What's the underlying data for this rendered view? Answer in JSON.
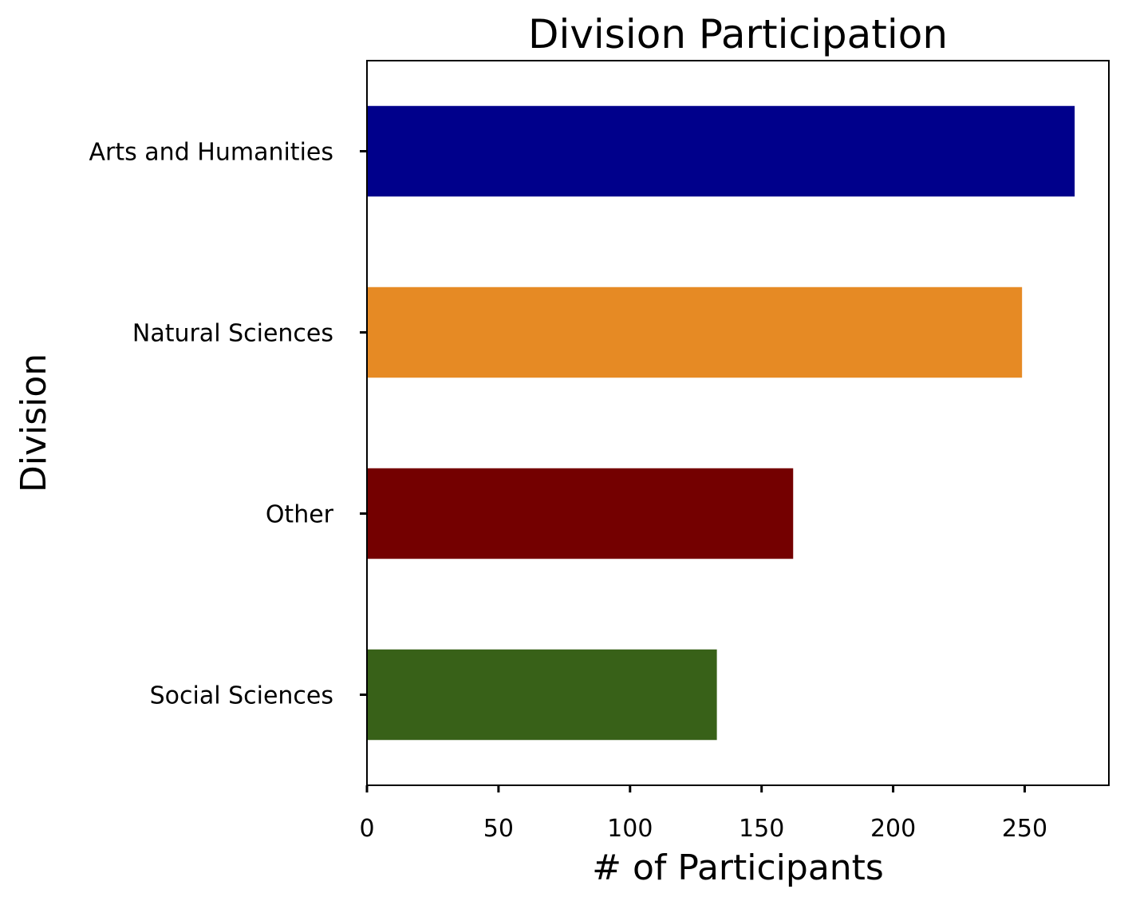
{
  "chart_data": {
    "type": "bar",
    "orientation": "horizontal",
    "title": "Division Participation",
    "xlabel": "# of Participants",
    "ylabel": "Division",
    "categories": [
      "Arts and Humanities",
      "Natural Sciences",
      "Other",
      "Social Sciences"
    ],
    "values": [
      269,
      249,
      162,
      133
    ],
    "colors": [
      "#00008b",
      "#e68a24",
      "#740000",
      "#386118"
    ],
    "xlim": [
      0,
      282
    ],
    "xticks": [
      0,
      50,
      100,
      150,
      200,
      250
    ],
    "grid": false,
    "legend": "none"
  }
}
